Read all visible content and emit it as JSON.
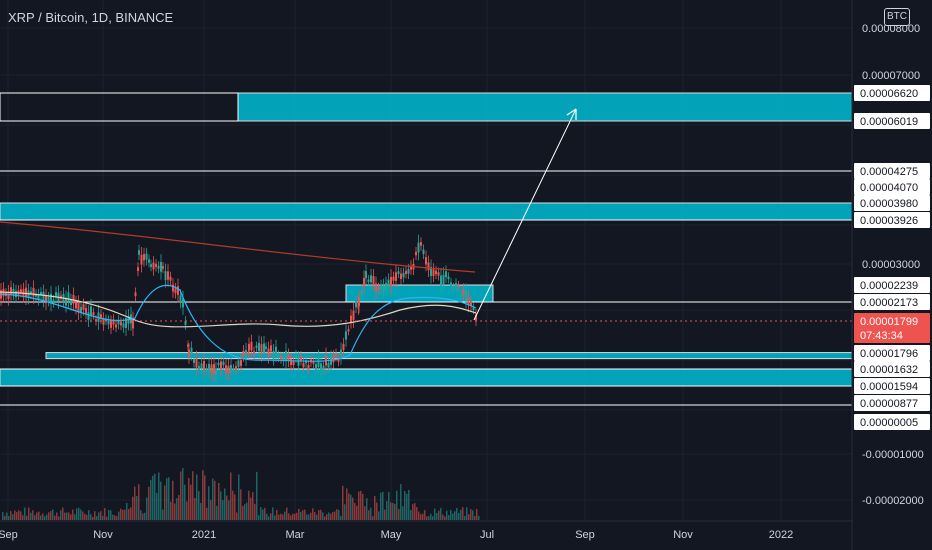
{
  "header": {
    "legend": "XRP / Bitcoin, 1D, BINANCE",
    "currency_button": "BTC"
  },
  "chart_data": {
    "type": "candlestick",
    "x_ticks": [
      "Sep",
      "Nov",
      "2021",
      "Mar",
      "May",
      "Jul",
      "Sep",
      "Nov",
      "2022"
    ],
    "y_ticks": [
      "0.00008000",
      "0.00007000",
      "0.00003000",
      "-0.00001000",
      "-0.00002000"
    ],
    "price_tags": [
      {
        "label": "0.00006620",
        "value": 6.62e-05
      },
      {
        "label": "0.00006019",
        "value": 6.019e-05
      },
      {
        "label": "0.00004275",
        "value": 4.275e-05
      },
      {
        "label": "0.00004070",
        "value": 4.07e-05
      },
      {
        "label": "0.00003980",
        "value": 3.98e-05
      },
      {
        "label": "0.00003926",
        "value": 3.926e-05
      },
      {
        "label": "0.00002239",
        "value": 2.239e-05
      },
      {
        "label": "0.00002173",
        "value": 2.173e-05
      },
      {
        "label": "0.00001796",
        "value": 1.796e-05
      },
      {
        "label": "0.00001632",
        "value": 1.632e-05
      },
      {
        "label": "0.00001594",
        "value": 1.594e-05
      },
      {
        "label": "0.00000877",
        "value": 8.77e-06
      },
      {
        "label": "0.00000005",
        "value": 5e-08
      }
    ],
    "last_price": {
      "label": "0.00001799",
      "countdown": "07:43:34"
    },
    "zones": [
      {
        "from": 6.019e-05,
        "to": 6.62e-05
      },
      {
        "from": 3.98e-05,
        "to": 3.926e-05
      },
      {
        "from": 2.239e-05,
        "to": 2.173e-05
      },
      {
        "from": 1.799e-05,
        "to": 1.796e-05
      },
      {
        "from": 1.632e-05,
        "to": 1.594e-05
      }
    ],
    "colors": {
      "up": "#26a69a",
      "down": "#ef5350",
      "zone": "#00bcd4",
      "ma_blue": "#29b6f6",
      "ma_white": "#e0d6c0",
      "ma_red": "#b23a2a"
    }
  }
}
